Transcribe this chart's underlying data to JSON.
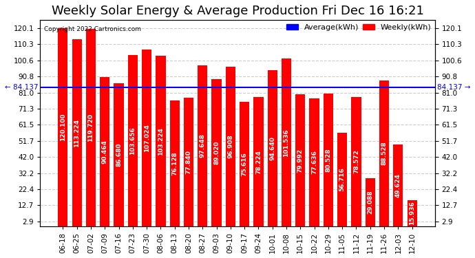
{
  "title": "Weekly Solar Energy & Average Production Fri Dec 16 16:21",
  "copyright": "Copyright 2022 Cartronics.com",
  "categories": [
    "06-18",
    "06-25",
    "07-02",
    "07-09",
    "07-16",
    "07-23",
    "07-30",
    "08-06",
    "08-13",
    "08-20",
    "08-27",
    "09-03",
    "09-10",
    "09-17",
    "09-24",
    "10-01",
    "10-08",
    "10-15",
    "10-22",
    "10-29",
    "11-05",
    "11-12",
    "11-19",
    "11-26",
    "12-03",
    "12-10"
  ],
  "values": [
    120.1,
    113.224,
    119.72,
    90.464,
    86.68,
    103.656,
    107.024,
    103.224,
    76.128,
    77.84,
    97.648,
    89.02,
    96.908,
    75.616,
    78.224,
    94.64,
    101.536,
    79.992,
    77.636,
    80.528,
    56.716,
    78.572,
    29.088,
    88.528,
    49.624,
    15.936
  ],
  "average": 84.137,
  "bar_color": "#ff0000",
  "average_line_color": "#0000ff",
  "background_color": "#ffffff",
  "plot_background_color": "#ffffff",
  "grid_color": "#cccccc",
  "ylabel_right": "",
  "yticks": [
    2.9,
    12.7,
    22.4,
    32.2,
    42.0,
    51.7,
    61.5,
    71.3,
    81.0,
    90.8,
    100.6,
    110.3,
    120.1
  ],
  "ylim": [
    0,
    125
  ],
  "legend_avg_label": "Average(kWh)",
  "legend_weekly_label": "Weekly(kWh)",
  "avg_annotation": "84.137",
  "title_fontsize": 13,
  "tick_fontsize": 7.5,
  "value_label_fontsize": 6.5
}
